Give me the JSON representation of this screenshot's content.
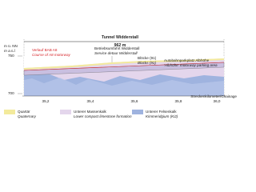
{
  "axis": {
    "unit_de": "m ü. NN",
    "unit_en": "m a.s.l.",
    "y_labels": [
      "750",
      "700"
    ],
    "x_labels": [
      "35,2",
      "35,4",
      "35,6",
      "35,8",
      "36,0"
    ],
    "x_title": "Streckenkilometer/Chainage"
  },
  "tunnel": {
    "name": "Tunnel Widderstall",
    "length": "962 m"
  },
  "annotations": [
    {
      "de": "Verlauf BAB A8",
      "en": "Course of A8 motorway"
    },
    {
      "de": "Betriebsumfahrt Widderstall",
      "en": "Service detour Widderstall"
    },
    {
      "de": "Blöcke (91)",
      "en": "Blocks (91)"
    },
    {
      "de": "Autobahnparkplatz Albhöhe",
      "en": "'Albhöhe' motorway parking area"
    }
  ],
  "legend": [
    {
      "de": "Quartär",
      "en": "Quaternary"
    },
    {
      "de": "Unterer Massenkalk",
      "en": "Lower compact limestone formation"
    },
    {
      "de": "Unterer Felsenkalk",
      "en": "Kimmeridgium (Ki2)"
    }
  ]
}
